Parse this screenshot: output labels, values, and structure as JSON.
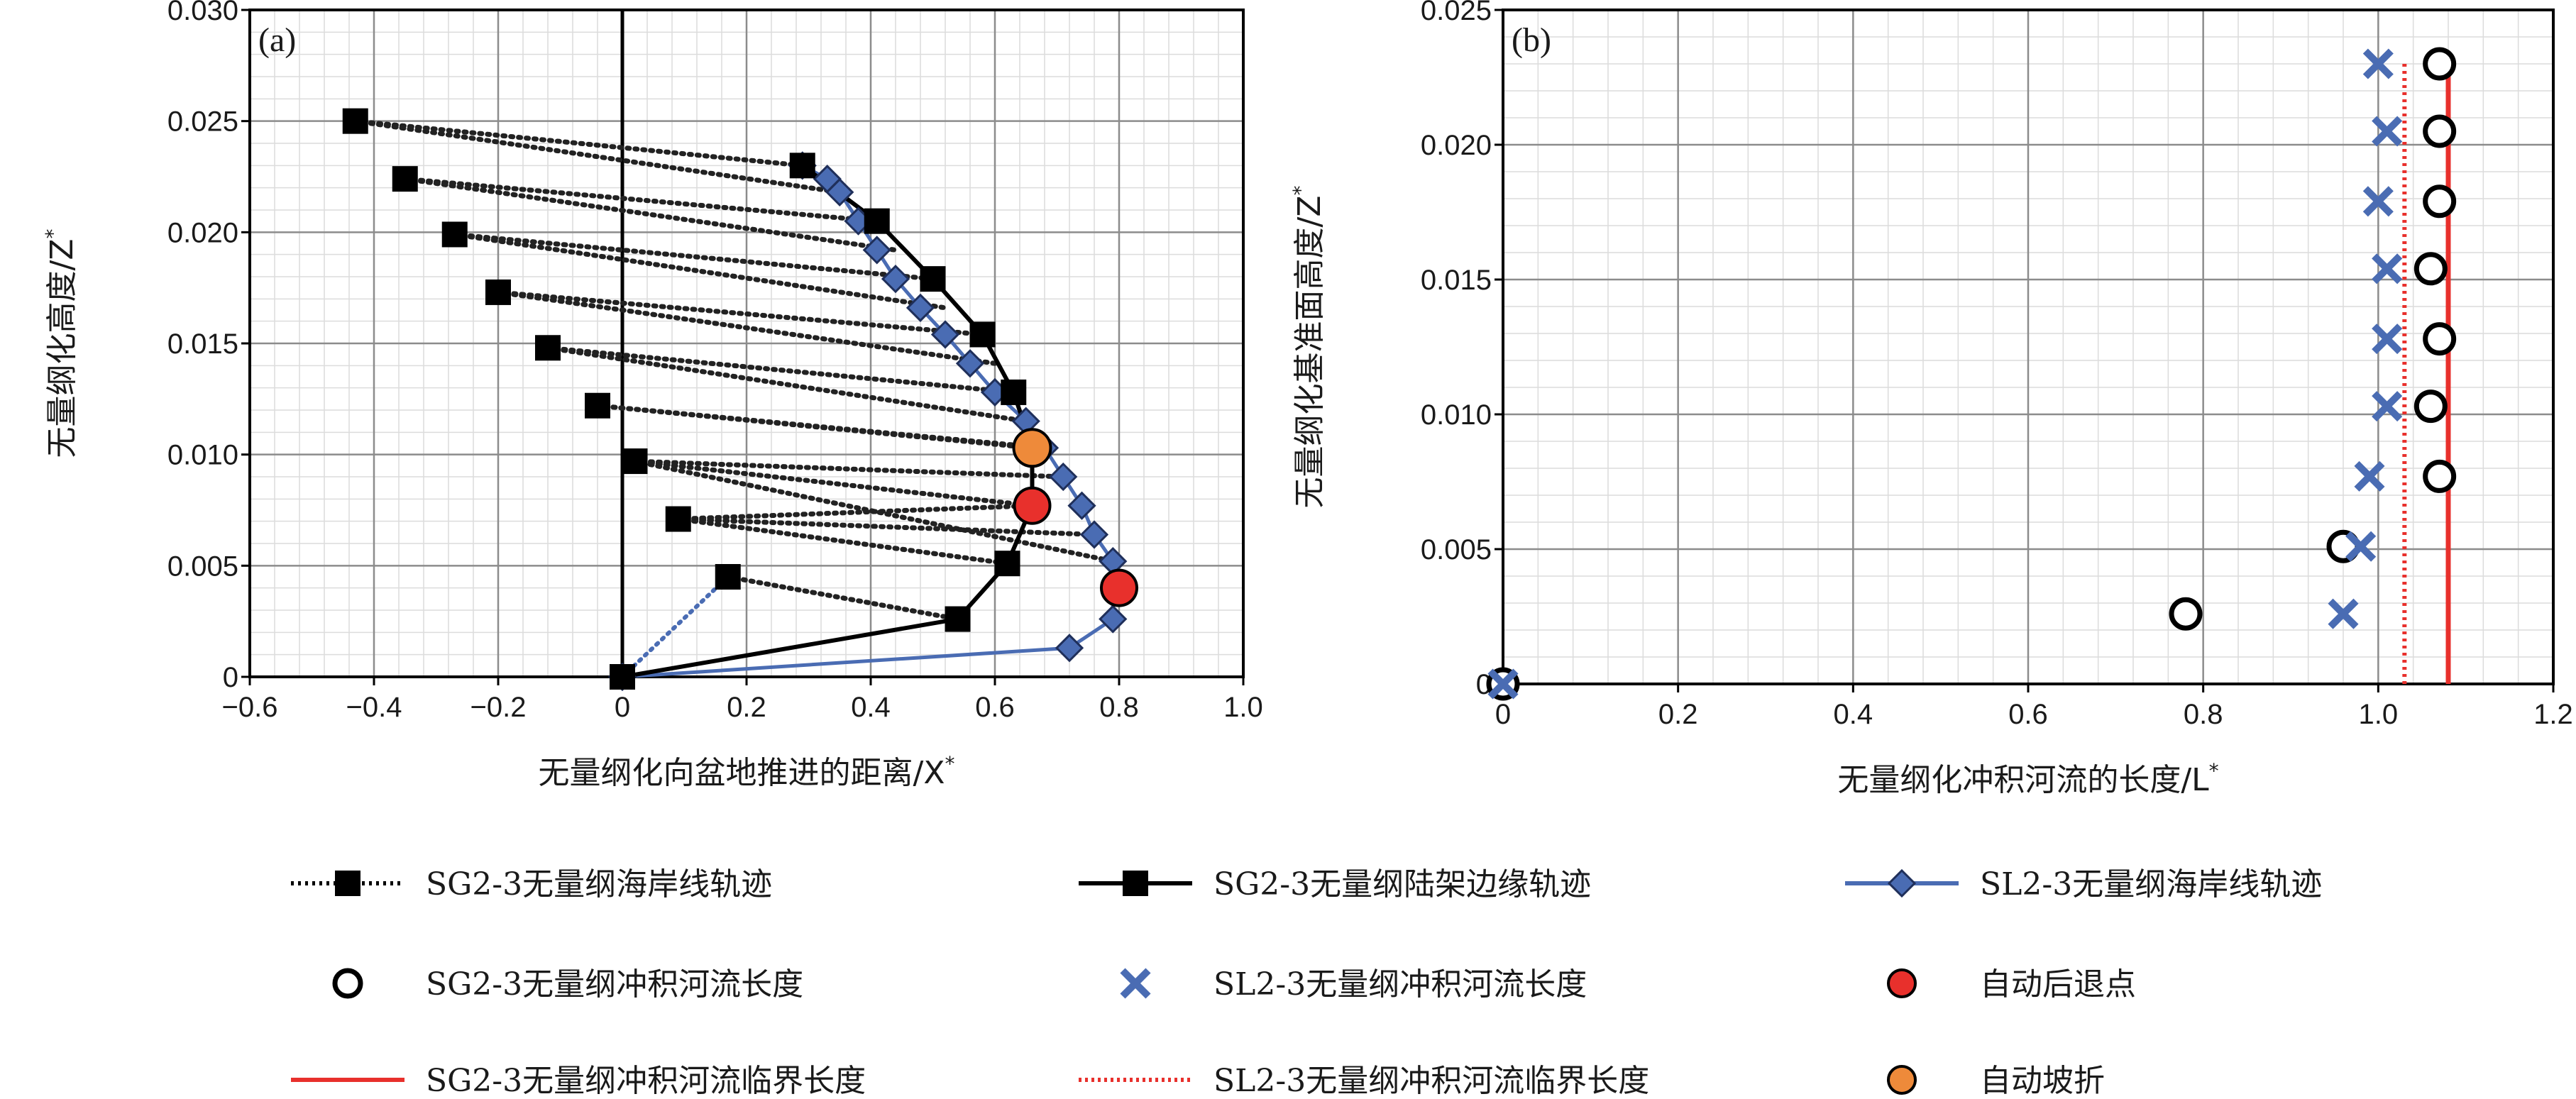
{
  "chart_data": [
    {
      "panel": "(a)",
      "type": "line",
      "xlabel": "无量纲化向盆地推进的距离/X",
      "xlabel_sup": "*",
      "ylabel": "无量纲化高度/Z",
      "ylabel_sup": "*",
      "xlim": [
        -0.6,
        1.0
      ],
      "ylim": [
        0,
        0.03
      ],
      "x_ticks": [
        "−0.6",
        "−0.4",
        "−0.2",
        "0",
        "0.2",
        "0.4",
        "0.6",
        "0.8",
        "1.0"
      ],
      "x_tick_values": [
        -0.6,
        -0.4,
        -0.2,
        0,
        0.2,
        0.4,
        0.6,
        0.8,
        1.0
      ],
      "y_ticks": [
        "0",
        "0.005",
        "0.010",
        "0.015",
        "0.020",
        "0.025",
        "0.030"
      ],
      "y_tick_values": [
        0,
        0.005,
        0.01,
        0.015,
        0.02,
        0.025,
        0.03
      ],
      "grid": true,
      "series": [
        {
          "name": "SG2-3无量纲海岸线轨迹",
          "color": "#000000",
          "points": [
            [
              0.17,
              0.0045
            ],
            [
              0.09,
              0.0071
            ],
            [
              0.02,
              0.0097
            ],
            [
              -0.04,
              0.0122
            ],
            [
              -0.12,
              0.0148
            ],
            [
              -0.2,
              0.0173
            ],
            [
              -0.27,
              0.0199
            ],
            [
              -0.35,
              0.0224
            ],
            [
              -0.43,
              0.025
            ]
          ]
        },
        {
          "name": "SG2-3无量纲陆架边缘轨迹",
          "color": "#000000",
          "points": [
            [
              0.0,
              0.0
            ],
            [
              0.54,
              0.0026
            ],
            [
              0.62,
              0.0051
            ],
            [
              0.66,
              0.0077
            ],
            [
              0.66,
              0.0103
            ],
            [
              0.63,
              0.0128
            ],
            [
              0.58,
              0.0154
            ],
            [
              0.5,
              0.0179
            ],
            [
              0.41,
              0.0205
            ],
            [
              0.29,
              0.023
            ]
          ]
        },
        {
          "name": "SL2-3无量纲海岸线轨迹",
          "color": "#4a6cb3",
          "points": [
            [
              0.0,
              0.0
            ],
            [
              0.72,
              0.0013
            ],
            [
              0.79,
              0.0026
            ],
            [
              0.79,
              0.0052
            ],
            [
              0.76,
              0.0064
            ],
            [
              0.74,
              0.0077
            ],
            [
              0.71,
              0.009
            ],
            [
              0.68,
              0.0103
            ],
            [
              0.65,
              0.0115
            ],
            [
              0.6,
              0.0128
            ],
            [
              0.56,
              0.0141
            ],
            [
              0.52,
              0.0154
            ],
            [
              0.48,
              0.0166
            ],
            [
              0.44,
              0.0179
            ],
            [
              0.41,
              0.0192
            ],
            [
              0.38,
              0.0205
            ],
            [
              0.35,
              0.0218
            ],
            [
              0.33,
              0.0224
            ],
            [
              0.29,
              0.023
            ]
          ]
        },
        {
          "name": "自动后退点",
          "color": "#e8302c",
          "points": [
            [
              0.66,
              0.0077
            ],
            [
              0.8,
              0.004
            ]
          ]
        },
        {
          "name": "自动坡折",
          "color": "#ee8a3a",
          "points": [
            [
              0.66,
              0.0103
            ]
          ]
        }
      ],
      "connectors": {
        "black": [
          [
            [
              -0.43,
              0.025
            ],
            [
              0.29,
              0.023
            ]
          ],
          [
            [
              -0.35,
              0.0224
            ],
            [
              0.41,
              0.0205
            ]
          ],
          [
            [
              -0.27,
              0.0199
            ],
            [
              0.5,
              0.0179
            ]
          ],
          [
            [
              -0.2,
              0.0173
            ],
            [
              0.58,
              0.0154
            ]
          ],
          [
            [
              -0.12,
              0.0148
            ],
            [
              0.63,
              0.0128
            ]
          ],
          [
            [
              -0.04,
              0.0122
            ],
            [
              0.66,
              0.0103
            ]
          ],
          [
            [
              0.02,
              0.0097
            ],
            [
              0.66,
              0.0077
            ]
          ],
          [
            [
              0.09,
              0.0071
            ],
            [
              0.62,
              0.0051
            ]
          ],
          [
            [
              0.17,
              0.0045
            ],
            [
              0.54,
              0.0026
            ]
          ],
          [
            [
              -0.43,
              0.025
            ],
            [
              0.35,
              0.0218
            ]
          ],
          [
            [
              -0.35,
              0.0224
            ],
            [
              0.44,
              0.0192
            ]
          ],
          [
            [
              -0.27,
              0.0199
            ],
            [
              0.52,
              0.0166
            ]
          ],
          [
            [
              -0.2,
              0.0173
            ],
            [
              0.6,
              0.0141
            ]
          ],
          [
            [
              -0.12,
              0.0148
            ],
            [
              0.65,
              0.0115
            ]
          ],
          [
            [
              0.02,
              0.0097
            ],
            [
              0.71,
              0.009
            ]
          ],
          [
            [
              0.09,
              0.0071
            ],
            [
              0.76,
              0.0064
            ]
          ],
          [
            [
              0.02,
              0.0097
            ],
            [
              0.79,
              0.0052
            ]
          ],
          [
            [
              -0.04,
              0.0122
            ],
            [
              0.68,
              0.0103
            ]
          ],
          [
            [
              0.09,
              0.0071
            ],
            [
              0.66,
              0.0077
            ]
          ]
        ],
        "blue": [
          [
            [
              0.0,
              0.0
            ],
            [
              0.17,
              0.0045
            ]
          ]
        ]
      }
    },
    {
      "panel": "(b)",
      "type": "scatter",
      "xlabel": "无量纲化冲积河流的长度/L",
      "xlabel_sup": "*",
      "ylabel": "无量纲化基准面高度/Z",
      "ylabel_sup": "*",
      "xlim": [
        0,
        1.2
      ],
      "ylim": [
        0,
        0.025
      ],
      "x_ticks": [
        "0",
        "0.2",
        "0.4",
        "0.6",
        "0.8",
        "1.0",
        "1.2"
      ],
      "x_tick_values": [
        0,
        0.2,
        0.4,
        0.6,
        0.8,
        1.0,
        1.2
      ],
      "y_ticks": [
        "0",
        "0.005",
        "0.010",
        "0.015",
        "0.020",
        "0.025"
      ],
      "y_tick_values": [
        0,
        0.005,
        0.01,
        0.015,
        0.02,
        0.025
      ],
      "grid": true,
      "series": [
        {
          "name": "SG2-3无量纲冲积河流长度",
          "color": "#000000",
          "points": [
            [
              0.0,
              0.0
            ],
            [
              0.78,
              0.0026
            ],
            [
              0.96,
              0.0051
            ],
            [
              1.07,
              0.0077
            ],
            [
              1.06,
              0.0103
            ],
            [
              1.07,
              0.0128
            ],
            [
              1.06,
              0.0154
            ],
            [
              1.07,
              0.0179
            ],
            [
              1.07,
              0.0205
            ],
            [
              1.07,
              0.023
            ]
          ]
        },
        {
          "name": "SL2-3无量纲冲积河流长度",
          "color": "#4a6cb3",
          "points": [
            [
              0.0,
              0.0
            ],
            [
              0.96,
              0.0026
            ],
            [
              0.98,
              0.0051
            ],
            [
              0.99,
              0.0077
            ],
            [
              1.01,
              0.0103
            ],
            [
              1.01,
              0.0128
            ],
            [
              1.01,
              0.0154
            ],
            [
              1.0,
              0.0179
            ],
            [
              1.01,
              0.0205
            ],
            [
              1.0,
              0.023
            ]
          ]
        },
        {
          "name": "SG2-3无量纲冲积河流临界长度",
          "color": "#e8302c",
          "x": 1.08,
          "y_range": [
            0,
            0.023
          ]
        },
        {
          "name": "SL2-3无量纲冲积河流临界长度",
          "color": "#e8302c",
          "x": 1.03,
          "y_range": [
            0,
            0.023
          ]
        }
      ]
    }
  ],
  "legend": {
    "placement": "bottom",
    "items": [
      {
        "label": "SG2-3无量纲海岸线轨迹",
        "marker": "square",
        "line": "dotted",
        "color": "#000000"
      },
      {
        "label": "SG2-3无量纲陆架边缘轨迹",
        "marker": "square",
        "line": "solid",
        "color": "#000000"
      },
      {
        "label": "SL2-3无量纲海岸线轨迹",
        "marker": "diamond",
        "line": "solid",
        "color": "#4a6cb3"
      },
      {
        "label": "SG2-3无量纲冲积河流长度",
        "marker": "circle-open",
        "line": "none",
        "color": "#000000"
      },
      {
        "label": "SL2-3无量纲冲积河流长度",
        "marker": "x",
        "line": "none",
        "color": "#4a6cb3"
      },
      {
        "label": "自动后退点",
        "marker": "circle-red",
        "line": "none",
        "color": "#e8302c"
      },
      {
        "label": "SG2-3无量纲冲积河流临界长度",
        "marker": "none",
        "line": "solid-red",
        "color": "#e8302c"
      },
      {
        "label": "SL2-3无量纲冲积河流临界长度",
        "marker": "none",
        "line": "dotted-red",
        "color": "#e8302c"
      },
      {
        "label": "自动坡折",
        "marker": "circle-orange",
        "line": "none",
        "color": "#ee8a3a"
      }
    ]
  }
}
